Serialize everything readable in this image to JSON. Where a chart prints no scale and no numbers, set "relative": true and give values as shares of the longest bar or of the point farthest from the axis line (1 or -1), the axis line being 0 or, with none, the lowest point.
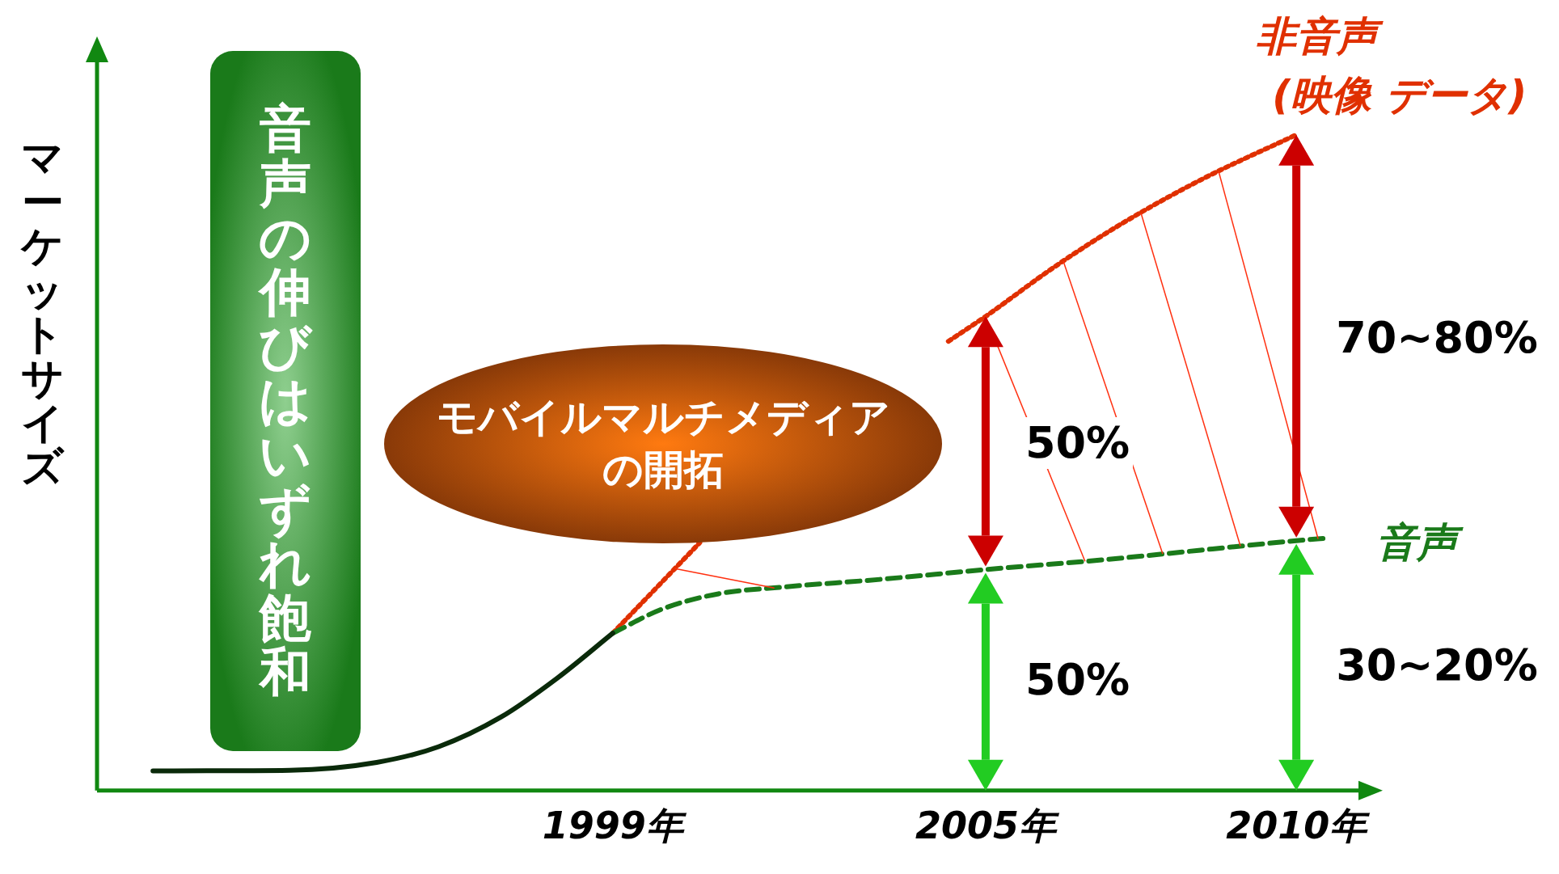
{
  "chart_data": {
    "type": "line",
    "relative": true,
    "ylabel": "マーケットサイズ",
    "xlim": [
      1990.7,
      2011
    ],
    "xticks": [
      {
        "value": 1999,
        "label": "1999年"
      },
      {
        "value": 2005,
        "label": "2005年"
      },
      {
        "value": 2010,
        "label": "2010年"
      }
    ],
    "grid": false,
    "legend": false,
    "marker": "none",
    "series": [
      {
        "color": "#0a2a0a",
        "line_style": "solid",
        "x": [
          1991.6,
          1993.8,
          1995.2,
          1996.2,
          1997.2,
          1998.1,
          1999
        ],
        "values": [
          0.03,
          0.031,
          0.043,
          0.067,
          0.112,
          0.171,
          0.24
        ]
      },
      {
        "name": "音声",
        "color": "#1a7a1a",
        "line_style": "dashed",
        "x": [
          1999,
          1999.8,
          2000.7,
          2001.7,
          2003.3,
          2005,
          2006.9,
          2010,
          2010.5
        ],
        "values": [
          0.24,
          0.277,
          0.3,
          0.31,
          0.322,
          0.337,
          0.352,
          0.381,
          0.385
        ]
      },
      {
        "name": "非音声 (映像 データ)",
        "color": "#e03000",
        "line_style": "dotted",
        "x": [
          1999,
          2000.4,
          2002,
          2004.4,
          2005,
          2006.1,
          2007.2,
          2008.5,
          2010
        ],
        "values": [
          0.24,
          0.378,
          null,
          0.685,
          0.723,
          0.798,
          0.865,
          0.933,
          1
        ]
      }
    ],
    "annotations": [
      "音声の伸びはいずれ飽和",
      "モバイルマルチメディアの開拓",
      "50%",
      "50%",
      "70~80%",
      "30~20%"
    ]
  }
}
